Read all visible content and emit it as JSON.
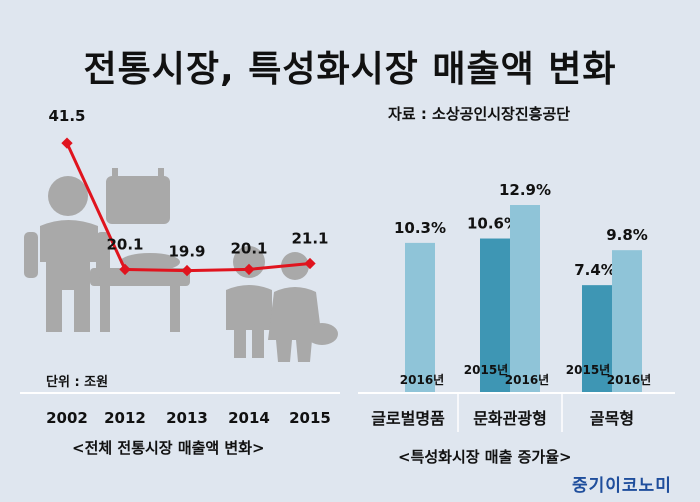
{
  "title": "전통시장, 특성화시장 매출액 변화",
  "source": "자료 : 소상공인시장진흥공단",
  "brand": "중기이코노미",
  "colors": {
    "line": "#e0141e",
    "bar_2015": "#3e96b4",
    "bar_2016": "#8fc4d8",
    "background": "#dfe6ef",
    "pictogram": "#a9a9a9"
  },
  "chart_data": [
    {
      "type": "line",
      "caption": "<전체 전통시장 매출액 변화>",
      "unit": "단위 : 조원",
      "x": [
        "2002",
        "2012",
        "2013",
        "2014",
        "2015"
      ],
      "values": [
        41.5,
        20.1,
        19.9,
        20.1,
        21.1
      ],
      "labels": [
        "41.5",
        "20.1",
        "19.9",
        "20.1",
        "21.1"
      ]
    },
    {
      "type": "bar",
      "caption": "<특성화시장 매출 증가율>",
      "categories": [
        "글로벌명품",
        "문화관광형",
        "골목형"
      ],
      "series": [
        {
          "name": "2015년",
          "values": [
            null,
            10.6,
            7.4
          ]
        },
        {
          "name": "2016년",
          "values": [
            10.3,
            12.9,
            9.8
          ]
        }
      ],
      "labels": {
        "2015년": [
          null,
          "10.6%",
          "7.4%"
        ],
        "2016년": [
          "10.3%",
          "12.9%",
          "9.8%"
        ]
      }
    }
  ]
}
